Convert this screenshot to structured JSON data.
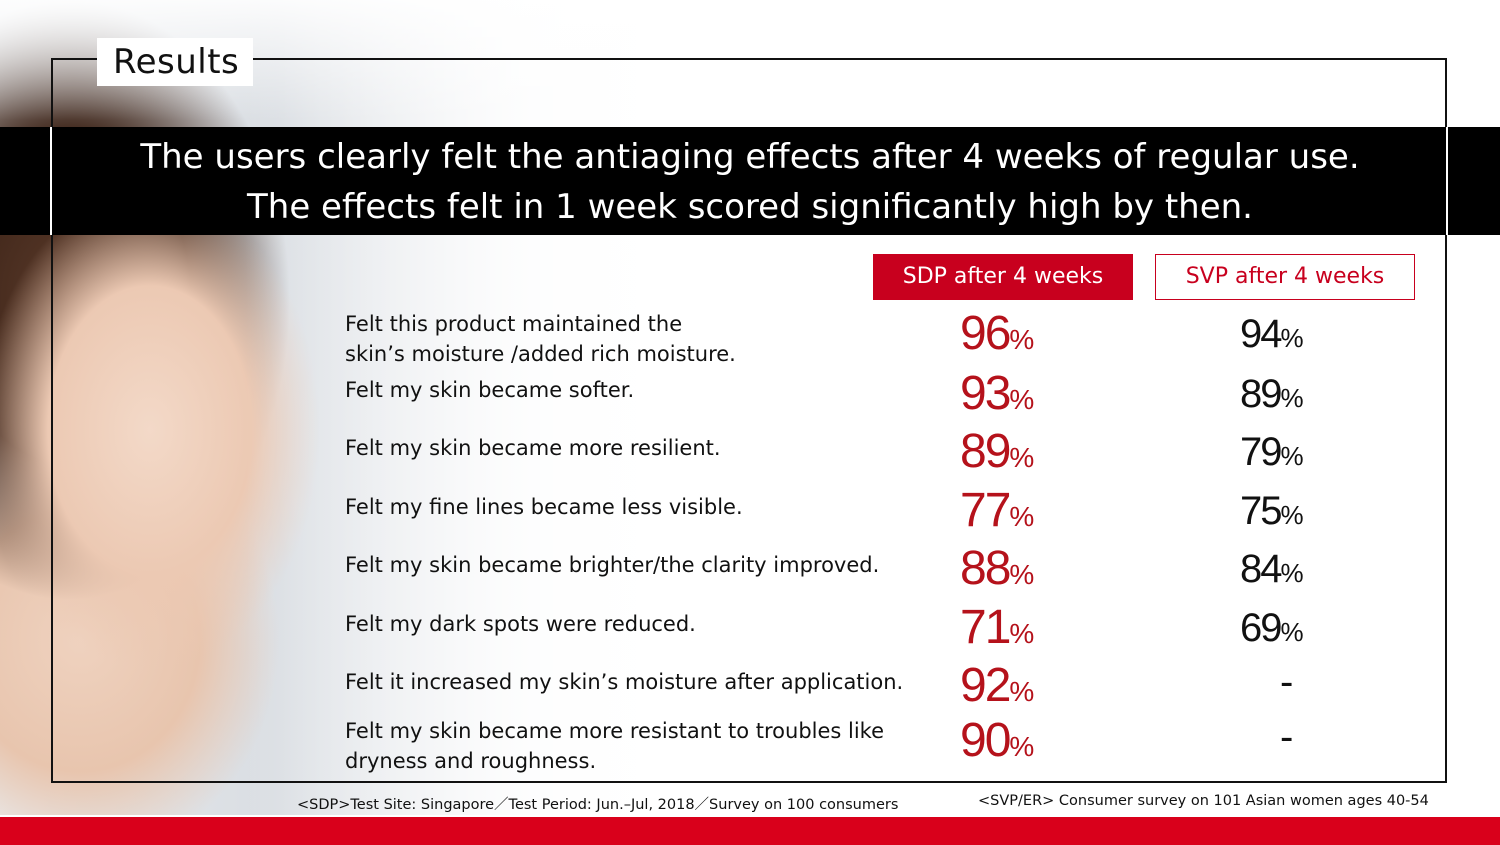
{
  "section_label": "Results",
  "banner": {
    "line1": "The users clearly felt the antiaging effects after 4 weeks of regular use.",
    "line2": "The effects felt in 1 week scored significantly high by then."
  },
  "columns": {
    "sdp": "SDP after 4 weeks",
    "svp": "SVP after 4 weeks"
  },
  "rows": [
    {
      "label_1": "Felt this product maintained the",
      "label_2": "skin’s moisture /added rich moisture.",
      "sdp": "96",
      "svp": "94"
    },
    {
      "label_1": "Felt my skin became softer.",
      "label_2": "",
      "sdp": "93",
      "svp": "89"
    },
    {
      "label_1": "Felt my skin became more resilient.",
      "label_2": "",
      "sdp": "89",
      "svp": "79"
    },
    {
      "label_1": "Felt my fine lines became less visible.",
      "label_2": "",
      "sdp": "77",
      "svp": "75"
    },
    {
      "label_1": "Felt my skin became brighter/the clarity improved.",
      "label_2": "",
      "sdp": "88",
      "svp": "84"
    },
    {
      "label_1": "Felt my dark spots were reduced.",
      "label_2": "",
      "sdp": "71",
      "svp": "69"
    },
    {
      "label_1": "Felt it increased my skin’s moisture after application.",
      "label_2": "",
      "sdp": "92",
      "svp": "-"
    },
    {
      "label_1": "Felt my skin became more resistant to troubles like",
      "label_2": "dryness and roughness.",
      "sdp": "90",
      "svp": "-"
    }
  ],
  "percent_sign": "%",
  "footnotes": {
    "left": "<SDP>Test Site: Singapore／Test Period: Jun.–Jul, 2018／Survey on 100 consumers",
    "right": "<SVP/ER> Consumer survey on 101 Asian women ages 40-54"
  },
  "colors": {
    "accent_red": "#c8001e",
    "banner_black": "#000000"
  },
  "image_subject": "woman-face-photo"
}
